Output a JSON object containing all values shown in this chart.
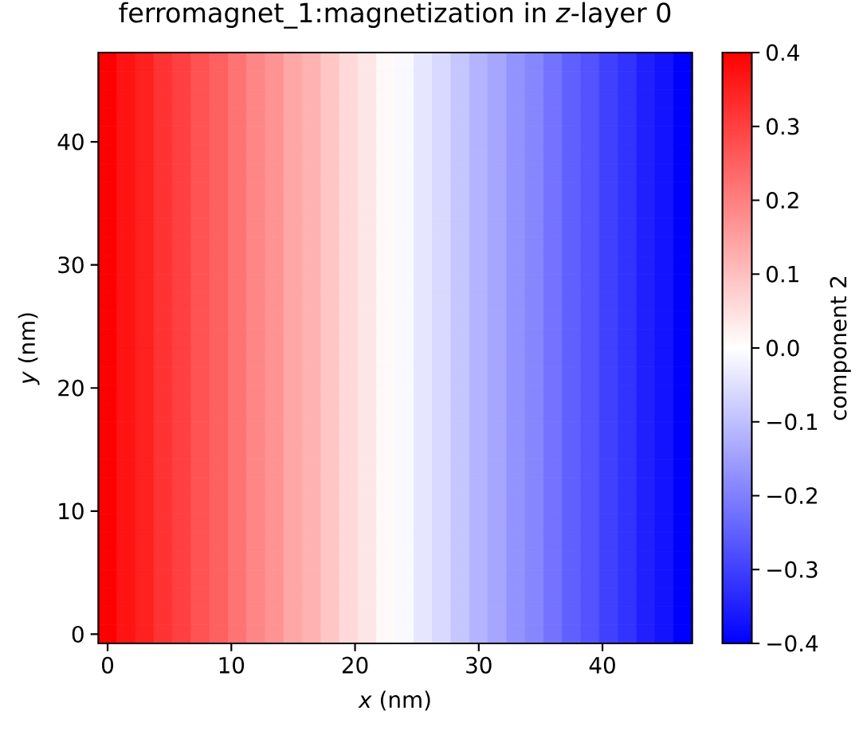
{
  "chart_data": {
    "type": "heatmap",
    "title": "ferromagnet_1:magnetization in *z*-layer 0",
    "xlabel": "*x* (nm)",
    "ylabel": "*y* (nm)",
    "clabel": "component 2",
    "x": [
      0,
      1.5,
      3,
      4.5,
      6,
      7.5,
      9,
      10.5,
      12,
      13.5,
      15,
      16.5,
      18,
      19.5,
      21,
      22.5,
      24,
      25.5,
      27,
      28.5,
      30,
      31.5,
      33,
      34.5,
      36,
      37.5,
      39,
      40.5,
      42,
      43.5,
      45,
      46.5
    ],
    "y": [
      46.5,
      45,
      43.5,
      42,
      40.5,
      39,
      37.5,
      36,
      34.5,
      33,
      31.5,
      30,
      28.5,
      27,
      25.5,
      24,
      22.5,
      21,
      19.5,
      18,
      16.5,
      15,
      13.5,
      12,
      10.5,
      9,
      7.5,
      6,
      4.5,
      3,
      1.5,
      0
    ],
    "cells": [
      [
        0.4,
        0.37,
        0.35,
        0.32,
        0.3,
        0.27,
        0.25,
        0.22,
        0.19,
        0.17,
        0.14,
        0.12,
        0.09,
        0.06,
        0.04,
        0.01,
        -0.01,
        -0.04,
        -0.06,
        -0.09,
        -0.12,
        -0.14,
        -0.17,
        -0.19,
        -0.22,
        -0.25,
        -0.27,
        -0.3,
        -0.32,
        -0.35,
        -0.37,
        -0.4
      ],
      [
        0.4,
        0.37,
        0.35,
        0.32,
        0.3,
        0.27,
        0.25,
        0.22,
        0.19,
        0.17,
        0.14,
        0.12,
        0.09,
        0.06,
        0.04,
        0.01,
        -0.01,
        -0.04,
        -0.06,
        -0.09,
        -0.12,
        -0.14,
        -0.17,
        -0.19,
        -0.22,
        -0.25,
        -0.27,
        -0.3,
        -0.32,
        -0.35,
        -0.37,
        -0.4
      ],
      [
        0.4,
        0.37,
        0.35,
        0.32,
        0.3,
        0.27,
        0.25,
        0.22,
        0.19,
        0.17,
        0.14,
        0.12,
        0.09,
        0.06,
        0.04,
        0.01,
        -0.01,
        -0.04,
        -0.06,
        -0.09,
        -0.12,
        -0.14,
        -0.17,
        -0.19,
        -0.22,
        -0.25,
        -0.27,
        -0.3,
        -0.32,
        -0.35,
        -0.37,
        -0.4
      ],
      [
        0.4,
        0.37,
        0.35,
        0.32,
        0.3,
        0.27,
        0.25,
        0.22,
        0.19,
        0.17,
        0.14,
        0.12,
        0.09,
        0.06,
        0.04,
        0.01,
        -0.01,
        -0.04,
        -0.06,
        -0.09,
        -0.12,
        -0.14,
        -0.17,
        -0.19,
        -0.22,
        -0.25,
        -0.27,
        -0.3,
        -0.32,
        -0.35,
        -0.37,
        -0.4
      ],
      [
        0.4,
        0.37,
        0.35,
        0.32,
        0.3,
        0.27,
        0.25,
        0.22,
        0.19,
        0.17,
        0.14,
        0.12,
        0.09,
        0.06,
        0.04,
        0.01,
        -0.01,
        -0.04,
        -0.06,
        -0.09,
        -0.12,
        -0.14,
        -0.17,
        -0.19,
        -0.22,
        -0.25,
        -0.27,
        -0.3,
        -0.32,
        -0.35,
        -0.37,
        -0.4
      ],
      [
        0.4,
        0.37,
        0.35,
        0.32,
        0.3,
        0.27,
        0.25,
        0.22,
        0.19,
        0.17,
        0.14,
        0.12,
        0.09,
        0.06,
        0.04,
        0.01,
        -0.01,
        -0.04,
        -0.06,
        -0.09,
        -0.12,
        -0.14,
        -0.17,
        -0.19,
        -0.22,
        -0.25,
        -0.27,
        -0.3,
        -0.32,
        -0.35,
        -0.37,
        -0.4
      ],
      [
        0.4,
        0.37,
        0.35,
        0.32,
        0.3,
        0.27,
        0.25,
        0.22,
        0.19,
        0.17,
        0.14,
        0.12,
        0.09,
        0.06,
        0.04,
        0.01,
        -0.01,
        -0.04,
        -0.06,
        -0.09,
        -0.12,
        -0.14,
        -0.17,
        -0.19,
        -0.22,
        -0.25,
        -0.27,
        -0.3,
        -0.32,
        -0.35,
        -0.37,
        -0.4
      ],
      [
        0.4,
        0.37,
        0.35,
        0.32,
        0.3,
        0.27,
        0.25,
        0.22,
        0.19,
        0.17,
        0.14,
        0.12,
        0.09,
        0.06,
        0.04,
        0.01,
        -0.01,
        -0.04,
        -0.06,
        -0.09,
        -0.12,
        -0.14,
        -0.17,
        -0.19,
        -0.22,
        -0.25,
        -0.27,
        -0.3,
        -0.32,
        -0.35,
        -0.37,
        -0.4
      ],
      [
        0.4,
        0.37,
        0.35,
        0.32,
        0.3,
        0.27,
        0.25,
        0.22,
        0.19,
        0.17,
        0.14,
        0.12,
        0.09,
        0.06,
        0.04,
        0.01,
        -0.01,
        -0.04,
        -0.06,
        -0.09,
        -0.12,
        -0.14,
        -0.17,
        -0.19,
        -0.22,
        -0.25,
        -0.27,
        -0.3,
        -0.32,
        -0.35,
        -0.37,
        -0.4
      ],
      [
        0.4,
        0.37,
        0.35,
        0.32,
        0.3,
        0.27,
        0.25,
        0.22,
        0.19,
        0.17,
        0.14,
        0.12,
        0.09,
        0.06,
        0.04,
        0.01,
        -0.01,
        -0.04,
        -0.06,
        -0.09,
        -0.12,
        -0.14,
        -0.17,
        -0.19,
        -0.22,
        -0.25,
        -0.27,
        -0.3,
        -0.32,
        -0.35,
        -0.37,
        -0.4
      ],
      [
        0.4,
        0.37,
        0.35,
        0.32,
        0.3,
        0.27,
        0.25,
        0.22,
        0.19,
        0.17,
        0.14,
        0.12,
        0.09,
        0.06,
        0.04,
        0.01,
        -0.01,
        -0.04,
        -0.06,
        -0.09,
        -0.12,
        -0.14,
        -0.17,
        -0.19,
        -0.22,
        -0.25,
        -0.27,
        -0.3,
        -0.32,
        -0.35,
        -0.37,
        -0.4
      ],
      [
        0.4,
        0.37,
        0.35,
        0.32,
        0.3,
        0.27,
        0.25,
        0.22,
        0.19,
        0.17,
        0.14,
        0.12,
        0.09,
        0.06,
        0.04,
        0.01,
        -0.01,
        -0.04,
        -0.06,
        -0.09,
        -0.12,
        -0.14,
        -0.17,
        -0.19,
        -0.22,
        -0.25,
        -0.27,
        -0.3,
        -0.32,
        -0.35,
        -0.37,
        -0.4
      ],
      [
        0.4,
        0.37,
        0.35,
        0.32,
        0.3,
        0.27,
        0.25,
        0.22,
        0.19,
        0.17,
        0.14,
        0.12,
        0.09,
        0.06,
        0.04,
        0.01,
        -0.01,
        -0.04,
        -0.06,
        -0.09,
        -0.12,
        -0.14,
        -0.17,
        -0.19,
        -0.22,
        -0.25,
        -0.27,
        -0.3,
        -0.32,
        -0.35,
        -0.37,
        -0.4
      ],
      [
        0.4,
        0.37,
        0.35,
        0.32,
        0.3,
        0.27,
        0.25,
        0.22,
        0.19,
        0.17,
        0.14,
        0.12,
        0.09,
        0.06,
        0.04,
        0.01,
        -0.01,
        -0.04,
        -0.06,
        -0.09,
        -0.12,
        -0.14,
        -0.17,
        -0.19,
        -0.22,
        -0.25,
        -0.27,
        -0.3,
        -0.32,
        -0.35,
        -0.37,
        -0.4
      ],
      [
        0.4,
        0.37,
        0.35,
        0.32,
        0.3,
        0.27,
        0.25,
        0.22,
        0.19,
        0.17,
        0.14,
        0.12,
        0.09,
        0.06,
        0.04,
        0.01,
        -0.01,
        -0.04,
        -0.06,
        -0.09,
        -0.12,
        -0.14,
        -0.17,
        -0.19,
        -0.22,
        -0.25,
        -0.27,
        -0.3,
        -0.32,
        -0.35,
        -0.37,
        -0.4
      ],
      [
        0.4,
        0.37,
        0.35,
        0.32,
        0.3,
        0.27,
        0.25,
        0.22,
        0.19,
        0.17,
        0.14,
        0.12,
        0.09,
        0.06,
        0.04,
        0.01,
        -0.01,
        -0.04,
        -0.06,
        -0.09,
        -0.12,
        -0.14,
        -0.17,
        -0.19,
        -0.22,
        -0.25,
        -0.27,
        -0.3,
        -0.32,
        -0.35,
        -0.37,
        -0.4
      ],
      [
        0.4,
        0.37,
        0.35,
        0.32,
        0.3,
        0.27,
        0.25,
        0.22,
        0.19,
        0.17,
        0.14,
        0.12,
        0.09,
        0.06,
        0.04,
        0.01,
        -0.01,
        -0.04,
        -0.06,
        -0.09,
        -0.12,
        -0.14,
        -0.17,
        -0.19,
        -0.22,
        -0.25,
        -0.27,
        -0.3,
        -0.32,
        -0.35,
        -0.37,
        -0.4
      ],
      [
        0.4,
        0.37,
        0.35,
        0.32,
        0.3,
        0.27,
        0.25,
        0.22,
        0.19,
        0.17,
        0.14,
        0.12,
        0.09,
        0.06,
        0.04,
        0.01,
        -0.01,
        -0.04,
        -0.06,
        -0.09,
        -0.12,
        -0.14,
        -0.17,
        -0.19,
        -0.22,
        -0.25,
        -0.27,
        -0.3,
        -0.32,
        -0.35,
        -0.37,
        -0.4
      ],
      [
        0.4,
        0.37,
        0.35,
        0.32,
        0.3,
        0.27,
        0.25,
        0.22,
        0.19,
        0.17,
        0.14,
        0.12,
        0.09,
        0.06,
        0.04,
        0.01,
        -0.01,
        -0.04,
        -0.06,
        -0.09,
        -0.12,
        -0.14,
        -0.17,
        -0.19,
        -0.22,
        -0.25,
        -0.27,
        -0.3,
        -0.32,
        -0.35,
        -0.37,
        -0.4
      ],
      [
        0.4,
        0.37,
        0.35,
        0.32,
        0.3,
        0.27,
        0.25,
        0.22,
        0.19,
        0.17,
        0.14,
        0.12,
        0.09,
        0.06,
        0.04,
        0.01,
        -0.01,
        -0.04,
        -0.06,
        -0.09,
        -0.12,
        -0.14,
        -0.17,
        -0.19,
        -0.22,
        -0.25,
        -0.27,
        -0.3,
        -0.32,
        -0.35,
        -0.37,
        -0.4
      ],
      [
        0.4,
        0.37,
        0.35,
        0.32,
        0.3,
        0.27,
        0.25,
        0.22,
        0.19,
        0.17,
        0.14,
        0.12,
        0.09,
        0.06,
        0.04,
        0.01,
        -0.01,
        -0.04,
        -0.06,
        -0.09,
        -0.12,
        -0.14,
        -0.17,
        -0.19,
        -0.22,
        -0.25,
        -0.27,
        -0.3,
        -0.32,
        -0.35,
        -0.37,
        -0.4
      ],
      [
        0.4,
        0.37,
        0.35,
        0.32,
        0.3,
        0.27,
        0.25,
        0.22,
        0.19,
        0.17,
        0.14,
        0.12,
        0.09,
        0.06,
        0.04,
        0.01,
        -0.01,
        -0.04,
        -0.06,
        -0.09,
        -0.12,
        -0.14,
        -0.17,
        -0.19,
        -0.22,
        -0.25,
        -0.27,
        -0.3,
        -0.32,
        -0.35,
        -0.37,
        -0.4
      ],
      [
        0.4,
        0.37,
        0.35,
        0.32,
        0.3,
        0.27,
        0.25,
        0.22,
        0.19,
        0.17,
        0.14,
        0.12,
        0.09,
        0.06,
        0.04,
        0.01,
        -0.01,
        -0.04,
        -0.06,
        -0.09,
        -0.12,
        -0.14,
        -0.17,
        -0.19,
        -0.22,
        -0.25,
        -0.27,
        -0.3,
        -0.32,
        -0.35,
        -0.37,
        -0.4
      ],
      [
        0.4,
        0.37,
        0.35,
        0.32,
        0.3,
        0.27,
        0.25,
        0.22,
        0.19,
        0.17,
        0.14,
        0.12,
        0.09,
        0.06,
        0.04,
        0.01,
        -0.01,
        -0.04,
        -0.06,
        -0.09,
        -0.12,
        -0.14,
        -0.17,
        -0.19,
        -0.22,
        -0.25,
        -0.27,
        -0.3,
        -0.32,
        -0.35,
        -0.37,
        -0.4
      ],
      [
        0.4,
        0.37,
        0.35,
        0.32,
        0.3,
        0.27,
        0.25,
        0.22,
        0.19,
        0.17,
        0.14,
        0.12,
        0.09,
        0.06,
        0.04,
        0.01,
        -0.01,
        -0.04,
        -0.06,
        -0.09,
        -0.12,
        -0.14,
        -0.17,
        -0.19,
        -0.22,
        -0.25,
        -0.27,
        -0.3,
        -0.32,
        -0.35,
        -0.37,
        -0.4
      ],
      [
        0.4,
        0.37,
        0.35,
        0.32,
        0.3,
        0.27,
        0.25,
        0.22,
        0.19,
        0.17,
        0.14,
        0.12,
        0.09,
        0.06,
        0.04,
        0.01,
        -0.01,
        -0.04,
        -0.06,
        -0.09,
        -0.12,
        -0.14,
        -0.17,
        -0.19,
        -0.22,
        -0.25,
        -0.27,
        -0.3,
        -0.32,
        -0.35,
        -0.37,
        -0.4
      ],
      [
        0.4,
        0.37,
        0.35,
        0.32,
        0.3,
        0.27,
        0.25,
        0.22,
        0.19,
        0.17,
        0.14,
        0.12,
        0.09,
        0.06,
        0.04,
        0.01,
        -0.01,
        -0.04,
        -0.06,
        -0.09,
        -0.12,
        -0.14,
        -0.17,
        -0.19,
        -0.22,
        -0.25,
        -0.27,
        -0.3,
        -0.32,
        -0.35,
        -0.37,
        -0.4
      ],
      [
        0.4,
        0.37,
        0.35,
        0.32,
        0.3,
        0.27,
        0.25,
        0.22,
        0.19,
        0.17,
        0.14,
        0.12,
        0.09,
        0.06,
        0.04,
        0.01,
        -0.01,
        -0.04,
        -0.06,
        -0.09,
        -0.12,
        -0.14,
        -0.17,
        -0.19,
        -0.22,
        -0.25,
        -0.27,
        -0.3,
        -0.32,
        -0.35,
        -0.37,
        -0.4
      ],
      [
        0.4,
        0.37,
        0.35,
        0.32,
        0.3,
        0.27,
        0.25,
        0.22,
        0.19,
        0.17,
        0.14,
        0.12,
        0.09,
        0.06,
        0.04,
        0.01,
        -0.01,
        -0.04,
        -0.06,
        -0.09,
        -0.12,
        -0.14,
        -0.17,
        -0.19,
        -0.22,
        -0.25,
        -0.27,
        -0.3,
        -0.32,
        -0.35,
        -0.37,
        -0.4
      ],
      [
        0.4,
        0.37,
        0.35,
        0.32,
        0.3,
        0.27,
        0.25,
        0.22,
        0.19,
        0.17,
        0.14,
        0.12,
        0.09,
        0.06,
        0.04,
        0.01,
        -0.01,
        -0.04,
        -0.06,
        -0.09,
        -0.12,
        -0.14,
        -0.17,
        -0.19,
        -0.22,
        -0.25,
        -0.27,
        -0.3,
        -0.32,
        -0.35,
        -0.37,
        -0.4
      ],
      [
        0.4,
        0.37,
        0.35,
        0.32,
        0.3,
        0.27,
        0.25,
        0.22,
        0.19,
        0.17,
        0.14,
        0.12,
        0.09,
        0.06,
        0.04,
        0.01,
        -0.01,
        -0.04,
        -0.06,
        -0.09,
        -0.12,
        -0.14,
        -0.17,
        -0.19,
        -0.22,
        -0.25,
        -0.27,
        -0.3,
        -0.32,
        -0.35,
        -0.37,
        -0.4
      ],
      [
        0.4,
        0.37,
        0.35,
        0.32,
        0.3,
        0.27,
        0.25,
        0.22,
        0.19,
        0.17,
        0.14,
        0.12,
        0.09,
        0.06,
        0.04,
        0.01,
        -0.01,
        -0.04,
        -0.06,
        -0.09,
        -0.12,
        -0.14,
        -0.17,
        -0.19,
        -0.22,
        -0.25,
        -0.27,
        -0.3,
        -0.32,
        -0.35,
        -0.37,
        -0.4
      ]
    ],
    "colors": [
      "#0000ff",
      "#ffffff",
      "#ff0000"
    ],
    "clim": [
      -0.4,
      0.4
    ],
    "cticks": [
      {
        "value": -0.4,
        "label": "−0.4"
      },
      {
        "value": -0.3,
        "label": "−0.3"
      },
      {
        "value": -0.2,
        "label": "−0.2"
      },
      {
        "value": -0.1,
        "label": "−0.1"
      },
      {
        "value": 0,
        "label": "0.0"
      },
      0.1,
      0.2,
      0.3,
      0.4
    ],
    "xlim": [
      -0.75,
      47.25
    ],
    "ylim": [
      -0.75,
      47.25
    ],
    "xticks": [
      0,
      10,
      20,
      30,
      40
    ],
    "yticks": [
      0,
      10,
      20,
      30,
      40
    ]
  }
}
